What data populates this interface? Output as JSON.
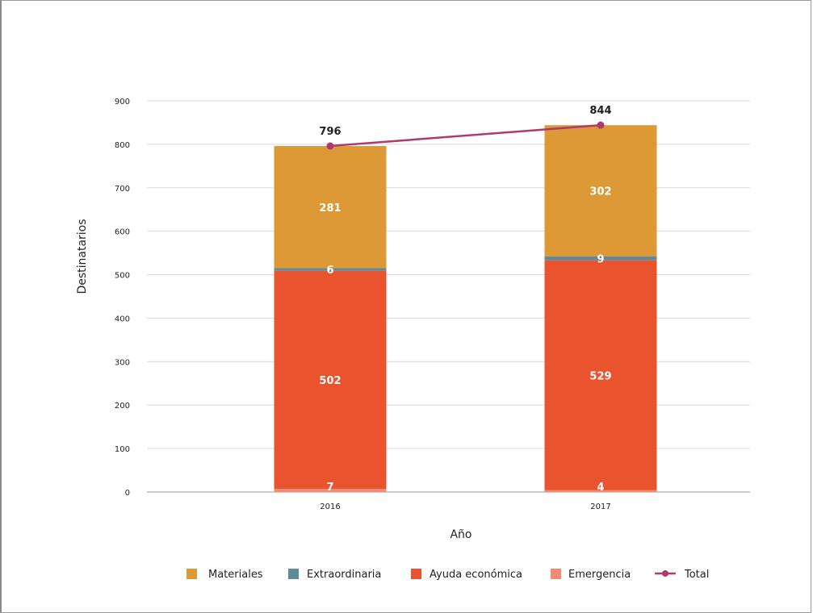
{
  "chart_data": {
    "type": "bar",
    "stacked": true,
    "categories": [
      "2016",
      "2017"
    ],
    "series": [
      {
        "name": "Emergencia",
        "values": [
          7,
          4
        ],
        "color": "#F08C73"
      },
      {
        "name": "Ayuda económica",
        "values": [
          502,
          529
        ],
        "color": "#E9542E"
      },
      {
        "name": "Extraordinaria",
        "values": [
          6,
          9
        ],
        "color": "#5E8A9A"
      },
      {
        "name": "Materiales",
        "values": [
          281,
          302
        ],
        "color": "#DC9936"
      }
    ],
    "line_series": {
      "name": "Total",
      "values": [
        796,
        844
      ],
      "color": "#B03A6E"
    },
    "xlabel": "Año",
    "ylabel": "Destinatarios",
    "ylim": [
      0,
      900
    ],
    "yticks": [
      0,
      100,
      200,
      300,
      400,
      500,
      600,
      700,
      800,
      900
    ],
    "grid": true,
    "legend_position": "bottom",
    "legend_order": [
      "Materiales",
      "Extraordinaria",
      "Ayuda económica",
      "Emergencia",
      "Total"
    ]
  }
}
